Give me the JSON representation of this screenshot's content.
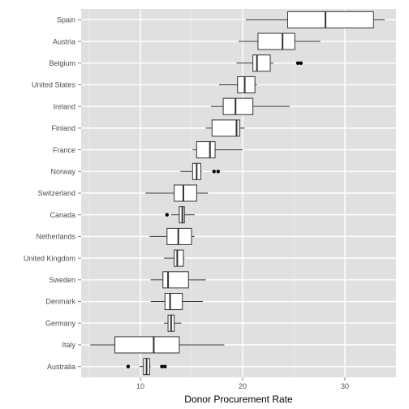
{
  "chart_data": {
    "type": "boxplot",
    "title": "",
    "xlabel": "Donor Procurement Rate",
    "ylabel": "",
    "xlim": [
      4.2,
      35.0
    ],
    "xticks": [
      10,
      20,
      30
    ],
    "grid": true,
    "legend": "none",
    "colors": {
      "panel": "#e0e0e0",
      "grid_major": "#ffffff",
      "grid_minor": "#ebebeb",
      "box_fill": "#ffffff",
      "stroke": "#333333",
      "outlier": "#000000",
      "tick_text": "#4d4d4d"
    },
    "categories": [
      "Spain",
      "Austria",
      "Belgium",
      "United States",
      "Ireland",
      "Finland",
      "France",
      "Norway",
      "Switzerland",
      "Canada",
      "Netherlands",
      "United Kingdom",
      "Sweden",
      "Denmark",
      "Germany",
      "Italy",
      "Australia"
    ],
    "boxes": [
      {
        "category": "Spain",
        "min": 20.3,
        "q1": 24.4,
        "median": 28.1,
        "q3": 32.8,
        "max": 33.9,
        "outliers": []
      },
      {
        "category": "Austria",
        "min": 19.6,
        "q1": 21.5,
        "median": 23.9,
        "q3": 25.1,
        "max": 27.6,
        "outliers": []
      },
      {
        "category": "Belgium",
        "min": 19.4,
        "q1": 21.0,
        "median": 21.4,
        "q3": 22.7,
        "max": 23.0,
        "outliers": [
          25.4,
          25.7
        ]
      },
      {
        "category": "United States",
        "min": 17.7,
        "q1": 19.5,
        "median": 20.2,
        "q3": 21.2,
        "max": 21.4,
        "outliers": []
      },
      {
        "category": "Ireland",
        "min": 16.9,
        "q1": 18.1,
        "median": 19.3,
        "q3": 21.0,
        "max": 24.6,
        "outliers": []
      },
      {
        "category": "Finland",
        "min": 16.4,
        "q1": 17.0,
        "median": 19.4,
        "q3": 19.7,
        "max": 20.2,
        "outliers": []
      },
      {
        "category": "France",
        "min": 15.1,
        "q1": 15.5,
        "median": 16.8,
        "q3": 17.3,
        "max": 20.0,
        "outliers": []
      },
      {
        "category": "Norway",
        "min": 13.9,
        "q1": 15.1,
        "median": 15.5,
        "q3": 15.9,
        "max": 16.0,
        "outliers": [
          17.2,
          17.6
        ]
      },
      {
        "category": "Switzerland",
        "min": 10.5,
        "q1": 13.3,
        "median": 14.2,
        "q3": 15.5,
        "max": 16.6,
        "outliers": []
      },
      {
        "category": "Canada",
        "min": 13.0,
        "q1": 13.8,
        "median": 14.1,
        "q3": 14.3,
        "max": 15.3,
        "outliers": [
          12.6
        ]
      },
      {
        "category": "Netherlands",
        "min": 10.9,
        "q1": 12.6,
        "median": 13.7,
        "q3": 15.0,
        "max": 15.3,
        "outliers": []
      },
      {
        "category": "United Kingdom",
        "min": 12.3,
        "q1": 13.3,
        "median": 13.6,
        "q3": 14.2,
        "max": 14.3,
        "outliers": []
      },
      {
        "category": "Sweden",
        "min": 11.0,
        "q1": 12.2,
        "median": 12.7,
        "q3": 14.7,
        "max": 16.4,
        "outliers": []
      },
      {
        "category": "Denmark",
        "min": 11.0,
        "q1": 12.4,
        "median": 12.9,
        "q3": 14.1,
        "max": 16.1,
        "outliers": []
      },
      {
        "category": "Germany",
        "min": 12.3,
        "q1": 12.7,
        "median": 13.0,
        "q3": 13.3,
        "max": 14.0,
        "outliers": []
      },
      {
        "category": "Italy",
        "min": 5.1,
        "q1": 7.5,
        "median": 11.3,
        "q3": 13.8,
        "max": 18.2,
        "outliers": []
      },
      {
        "category": "Australia",
        "min": 9.9,
        "q1": 10.3,
        "median": 10.6,
        "q3": 10.9,
        "max": 11.0,
        "outliers": [
          8.8,
          12.1,
          12.4
        ]
      }
    ]
  }
}
